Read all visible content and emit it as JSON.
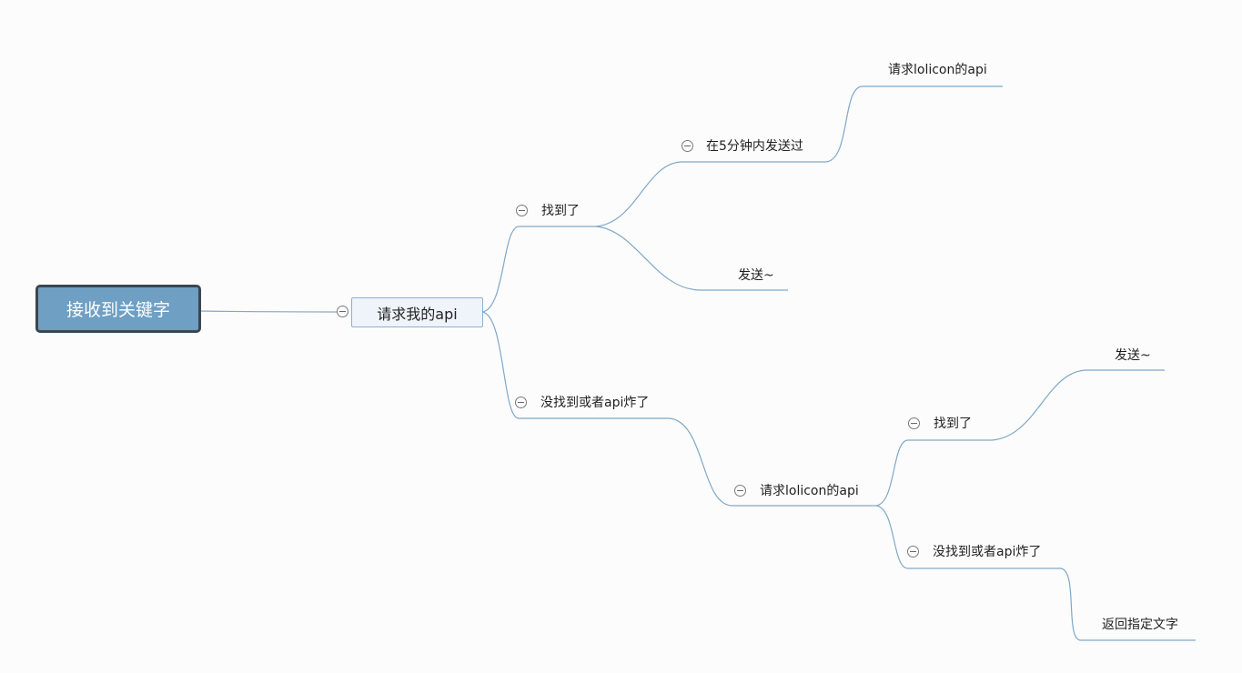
{
  "mindmap": {
    "root": {
      "label": "接收到关键字"
    },
    "main": {
      "label": "请求我的api"
    },
    "topics": {
      "found": {
        "label": "找到了"
      },
      "sent_within_5min": {
        "label": "在5分钟内发送过"
      },
      "request_lolicon_top": {
        "label": "请求lolicon的api"
      },
      "send_top": {
        "label": "发送~"
      },
      "not_found": {
        "label": "没找到或者api炸了"
      },
      "request_lolicon": {
        "label": "请求lolicon的api"
      },
      "found_2": {
        "label": "找到了"
      },
      "send_bottom": {
        "label": "发送~"
      },
      "not_found_2": {
        "label": "没找到或者api炸了"
      },
      "return_text": {
        "label": "返回指定文字"
      }
    }
  },
  "colors": {
    "root_fill": "#6f9fc3",
    "root_border": "#3a4650",
    "line": "#7fa8c8",
    "background": "#fcfcfc"
  }
}
